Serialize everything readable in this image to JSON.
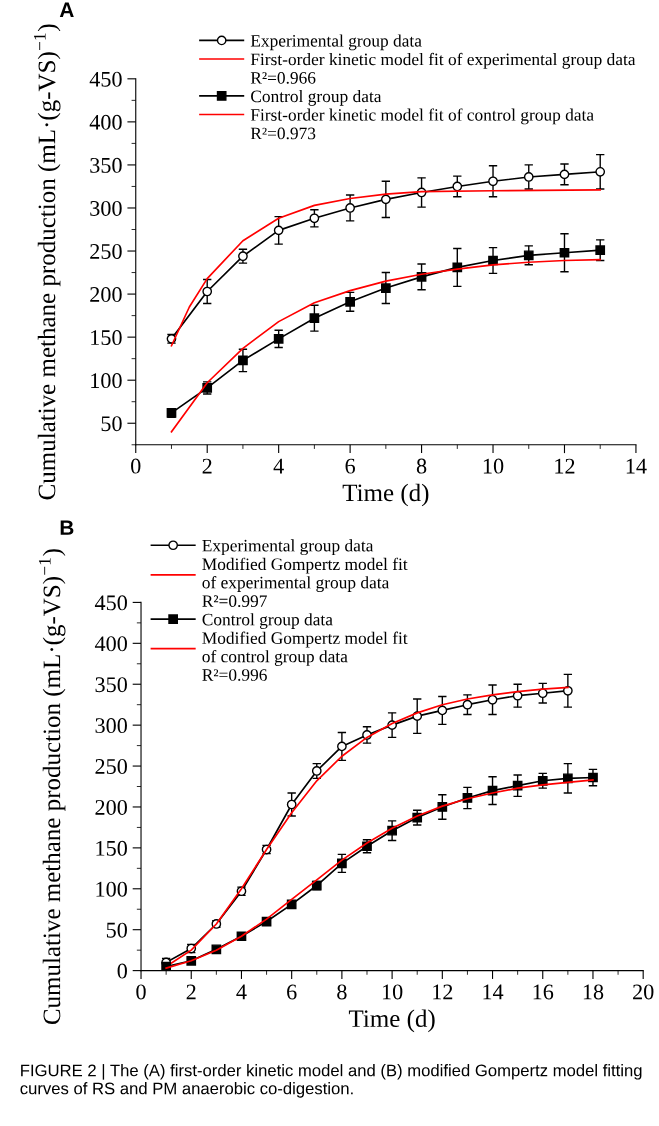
{
  "chart_data": [
    {
      "type": "line",
      "xlabel": "Time (d)",
      "ylabel": "Cumulative methane production (mL·(g-VS)$^{−1}$)",
      "xlim": [
        0,
        14
      ],
      "xticks": [
        0,
        2,
        4,
        6,
        8,
        10,
        12,
        14
      ],
      "ylim": [
        25,
        450
      ],
      "yticks": [
        50,
        100,
        150,
        200,
        250,
        300,
        350,
        400,
        450
      ],
      "grid": false,
      "legend": "top right",
      "annotations": [
        "A",
        "R²=0.966",
        "R²=0.973"
      ],
      "series": [
        {
          "name": "Experimental group data",
          "color": "#000000",
          "marker": "circle",
          "x": [
            1,
            2,
            3,
            4,
            5,
            6,
            7,
            8,
            9,
            10,
            11,
            12,
            13
          ],
          "values": [
            148,
            203,
            244,
            274,
            288,
            300,
            310,
            318,
            325,
            331,
            336,
            339,
            342
          ],
          "errors": [
            5,
            14,
            8,
            16,
            10,
            15,
            21,
            17,
            12,
            18,
            14,
            12,
            20
          ]
        },
        {
          "name": "First-order kinetic model fit of experimental group data",
          "color": "#ff0000",
          "x": [
            1,
            1.5,
            2,
            3,
            4,
            5,
            6,
            7,
            8,
            10,
            13
          ],
          "values": [
            140,
            185,
            218,
            262,
            288,
            303,
            311,
            316,
            319,
            320,
            321
          ]
        },
        {
          "name": "Control group data",
          "color": "#000000",
          "marker": "square",
          "x": [
            1,
            2,
            3,
            4,
            5,
            6,
            7,
            8,
            9,
            10,
            11,
            12,
            13
          ],
          "values": [
            62,
            91,
            123,
            148,
            172,
            191,
            207,
            220,
            231,
            239,
            245,
            248,
            251
          ],
          "errors": [
            5,
            7,
            13,
            10,
            15,
            11,
            18,
            15,
            22,
            15,
            11,
            22,
            12
          ]
        },
        {
          "name": "First-order kinetic model fit of control group data",
          "color": "#ff0000",
          "x": [
            1,
            2,
            3,
            4,
            5,
            6,
            7,
            8,
            9,
            10,
            11,
            12,
            13
          ],
          "values": [
            40,
            97,
            137,
            168,
            190,
            204,
            215,
            223,
            229,
            234,
            237,
            239,
            240
          ]
        }
      ]
    },
    {
      "type": "line",
      "xlabel": "Time (d)",
      "ylabel": "Cumulative methane production (mL·(g-VS)$^{−1}$)",
      "xlim": [
        0,
        20
      ],
      "xticks": [
        0,
        2,
        4,
        6,
        8,
        10,
        12,
        14,
        16,
        18,
        20
      ],
      "ylim": [
        0,
        450
      ],
      "yticks": [
        0,
        50,
        100,
        150,
        200,
        250,
        300,
        350,
        400,
        450
      ],
      "grid": false,
      "legend": "top left",
      "annotations": [
        "B",
        "R²=0.997",
        "R²=0.996",
        "FIGURE 2 | The (A) first-order kinetic model and (B) modified Gompertz model fitting curves of RS and PM anaerobic co-digestion."
      ],
      "series": [
        {
          "name": "Experimental group data",
          "color": "#000000",
          "marker": "circle",
          "x": [
            1,
            2,
            3,
            4,
            5,
            6,
            7,
            8,
            9,
            10,
            11,
            12,
            13,
            14,
            15,
            16,
            17
          ],
          "values": [
            10,
            27,
            57,
            97,
            148,
            203,
            244,
            274,
            288,
            300,
            311,
            318,
            325,
            331,
            336,
            339,
            342
          ],
          "errors": [
            5,
            5,
            4,
            5,
            5,
            14,
            9,
            17,
            10,
            15,
            21,
            17,
            12,
            18,
            14,
            12,
            20
          ]
        },
        {
          "name": "Modified Gompertz model fit\nof experimental group data",
          "color": "#ff0000",
          "x": [
            1,
            2,
            3,
            4,
            5,
            6,
            7,
            8,
            9,
            10,
            11,
            12,
            13,
            14,
            15,
            16,
            17
          ],
          "values": [
            5,
            25,
            57,
            100,
            148,
            193,
            232,
            262,
            285,
            302,
            315,
            325,
            332,
            337,
            341,
            344,
            346
          ]
        },
        {
          "name": "Control group data",
          "color": "#000000",
          "marker": "square",
          "x": [
            1,
            2,
            3,
            4,
            5,
            6,
            7,
            8,
            9,
            10,
            11,
            12,
            13,
            14,
            15,
            16,
            17,
            18
          ],
          "values": [
            5,
            12,
            26,
            42,
            60,
            81,
            104,
            131,
            152,
            171,
            187,
            200,
            211,
            220,
            226,
            232,
            235,
            236
          ],
          "errors": [
            3,
            3,
            3,
            3,
            4,
            4,
            5,
            11,
            8,
            12,
            9,
            15,
            13,
            17,
            13,
            9,
            18,
            10
          ]
        },
        {
          "name": "Modified Gompertz model fit\nof control group data",
          "color": "#ff0000",
          "x": [
            1,
            2,
            3,
            4,
            5,
            6,
            7,
            8,
            9,
            10,
            11,
            12,
            13,
            14,
            15,
            16,
            17,
            18
          ],
          "values": [
            3,
            12,
            25,
            42,
            63,
            87,
            111,
            135,
            156,
            174,
            189,
            201,
            210,
            217,
            223,
            227,
            230,
            233
          ]
        }
      ]
    }
  ]
}
